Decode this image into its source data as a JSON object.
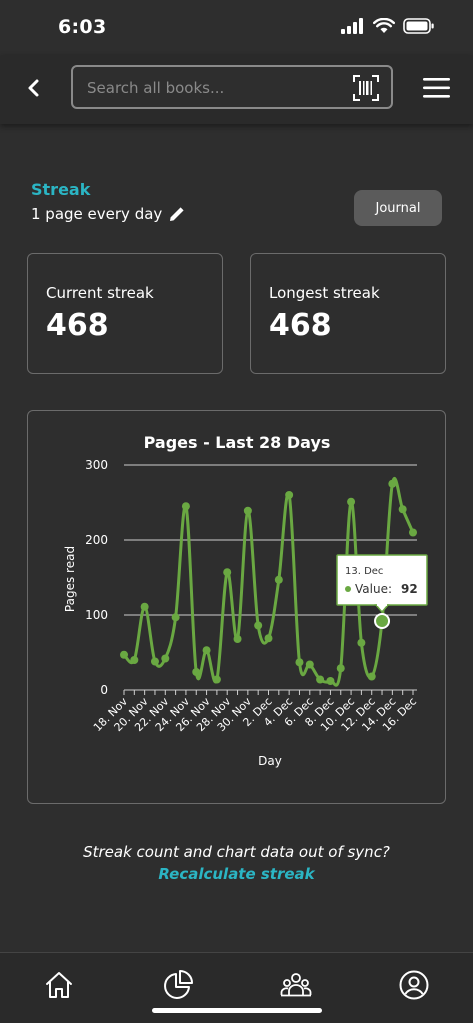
{
  "status_bar": {
    "time": "6:03",
    "icons": [
      "cellular-signal-icon",
      "wifi-icon",
      "battery-icon"
    ]
  },
  "header": {
    "back_icon": "chevron-left-icon",
    "search_placeholder": "Search all books...",
    "barcode_icon": "barcode-scan-icon",
    "menu_icon": "hamburger-menu-icon"
  },
  "streak": {
    "title": "Streak",
    "goal": "1 page every day",
    "edit_icon": "pencil-icon",
    "journal_label": "Journal"
  },
  "stats": {
    "current_label": "Current streak",
    "current_value": "468",
    "longest_label": "Longest streak",
    "longest_value": "468"
  },
  "colors": {
    "accent": "#2bb5c4",
    "line": "#6aa842",
    "background": "#2e2e2e"
  },
  "chart_data": {
    "type": "line",
    "title": "Pages - Last 28 Days",
    "xlabel": "Day",
    "ylabel": "Pages read",
    "ylim": [
      0,
      300
    ],
    "yticks": [
      0,
      100,
      200,
      300
    ],
    "grid": true,
    "x": [
      "18. Nov",
      "19. Nov",
      "20. Nov",
      "21. Nov",
      "22. Nov",
      "23. Nov",
      "24. Nov",
      "25. Nov",
      "26. Nov",
      "27. Nov",
      "28. Nov",
      "29. Nov",
      "30. Nov",
      "1. Dec",
      "2. Dec",
      "3. Dec",
      "4. Dec",
      "5. Dec",
      "6. Dec",
      "7. Dec",
      "8. Dec",
      "9. Dec",
      "10. Dec",
      "11. Dec",
      "12. Dec",
      "13. Dec",
      "14. Dec",
      "15. Dec",
      "16. Dec"
    ],
    "xtick_labels": [
      "18. Nov",
      "20. Nov",
      "22. Nov",
      "24. Nov",
      "26. Nov",
      "28. Nov",
      "30. Nov",
      "2. Dec",
      "4. Dec",
      "6. Dec",
      "8. Dec",
      "10. Dec",
      "12. Dec",
      "14. Dec",
      "16. Dec"
    ],
    "series": [
      {
        "name": "Value",
        "values": [
          47,
          40,
          111,
          38,
          42,
          97,
          245,
          24,
          53,
          14,
          157,
          68,
          239,
          86,
          69,
          147,
          260,
          37,
          34,
          14,
          12,
          29,
          251,
          63,
          18,
          92,
          275,
          241,
          210
        ]
      }
    ],
    "tooltip": {
      "date": "13. Dec",
      "label": "Value:",
      "value": "92"
    }
  },
  "footer": {
    "sync_text": "Streak count and chart data out of sync?",
    "recalc_link": "Recalculate streak"
  },
  "bottom_nav": {
    "items": [
      "home-icon",
      "stats-pie-icon",
      "community-icon",
      "profile-icon"
    ]
  }
}
